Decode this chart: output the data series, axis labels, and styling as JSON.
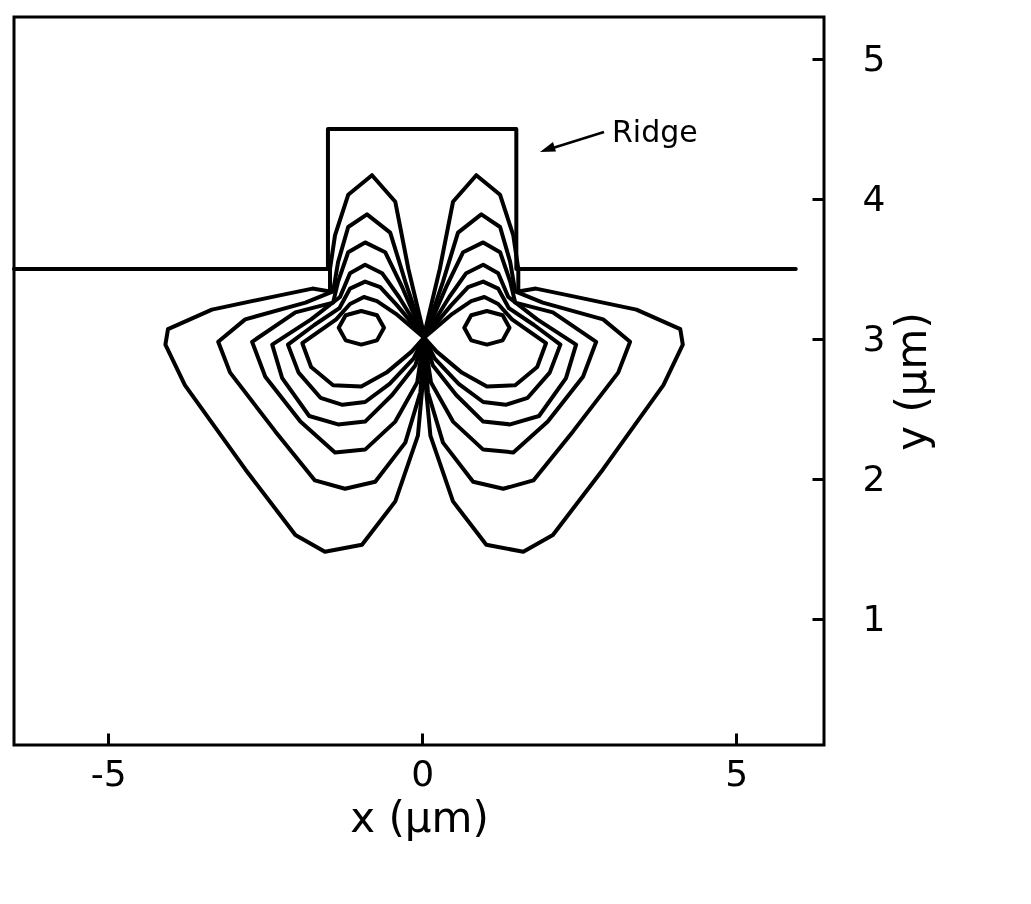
{
  "chart_data": {
    "type": "line",
    "xlabel": "x (µm)",
    "ylabel": "y (µm)",
    "xlim": [
      -6.5,
      6.4
    ],
    "ylim": [
      0.1,
      5.3
    ],
    "xticks": [
      -5,
      0,
      5
    ],
    "yticks": [
      1,
      2,
      3,
      4,
      5
    ],
    "grid": false,
    "marker": "none",
    "line_style": "solid",
    "annotations": [
      "Ridge"
    ],
    "series": [
      {
        "color": "#000000",
        "x": [
          -6.5,
          -1.5,
          -1.5,
          1.5,
          1.5,
          5.95
        ],
        "values": [
          3.5,
          3.5,
          4.5,
          4.5,
          3.5,
          3.5
        ]
      }
    ]
  }
}
